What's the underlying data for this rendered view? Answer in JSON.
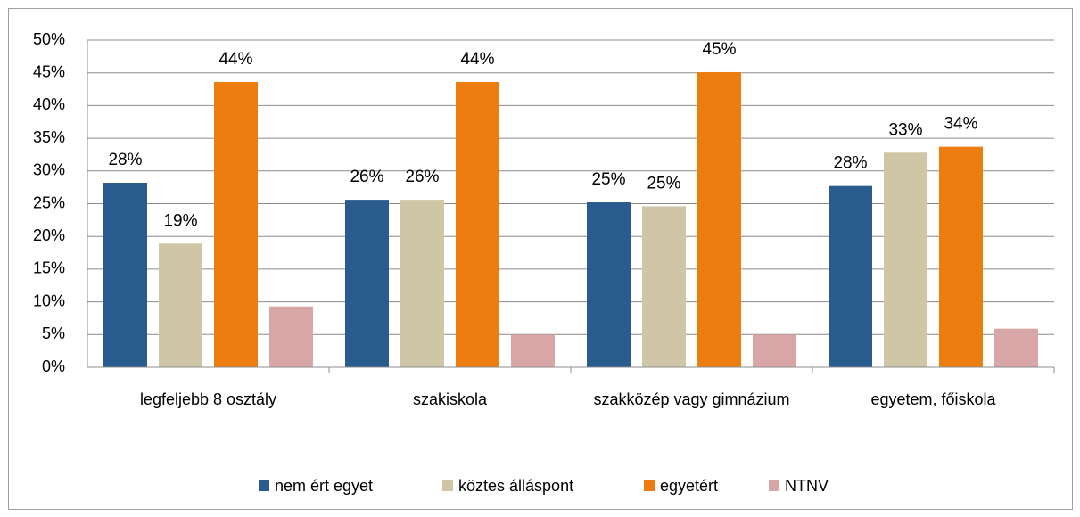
{
  "chart_data": {
    "type": "bar",
    "categories": [
      "legfeljebb 8 osztály",
      "szakiskola",
      "szakközép vagy gimnázium",
      "egyetem, főiskola"
    ],
    "series": [
      {
        "name": "nem ért egyet",
        "color": "#2a5b8f",
        "values": [
          28.2,
          25.6,
          25.2,
          27.7
        ],
        "value_labels": [
          "28%",
          "26%",
          "25%",
          "28%"
        ]
      },
      {
        "name": "köztes álláspont",
        "color": "#cfc6a5",
        "values": [
          18.9,
          25.6,
          24.6,
          32.8
        ],
        "value_labels": [
          "19%",
          "26%",
          "25%",
          "33%"
        ]
      },
      {
        "name": "egyetért",
        "color": "#ed7d0e",
        "values": [
          43.6,
          43.6,
          45.1,
          33.7
        ],
        "value_labels": [
          "44%",
          "44%",
          "45%",
          "34%"
        ]
      },
      {
        "name": "NTNV",
        "color": "#d9a6a8",
        "values": [
          9.3,
          5.0,
          5.0,
          5.9
        ]
      }
    ],
    "ylim": [
      0,
      50
    ],
    "yticks": [
      {
        "value": 0,
        "label": "0%"
      },
      {
        "value": 5,
        "label": "5%"
      },
      {
        "value": 10,
        "label": "10%"
      },
      {
        "value": 15,
        "label": "15%"
      },
      {
        "value": 20,
        "label": "20%"
      },
      {
        "value": 25,
        "label": "25%"
      },
      {
        "value": 30,
        "label": "30%"
      },
      {
        "value": 35,
        "label": "35%"
      },
      {
        "value": 40,
        "label": "40%"
      },
      {
        "value": 45,
        "label": "45%"
      },
      {
        "value": 50,
        "label": "50%"
      }
    ],
    "grid": true,
    "legend": "bottom"
  }
}
